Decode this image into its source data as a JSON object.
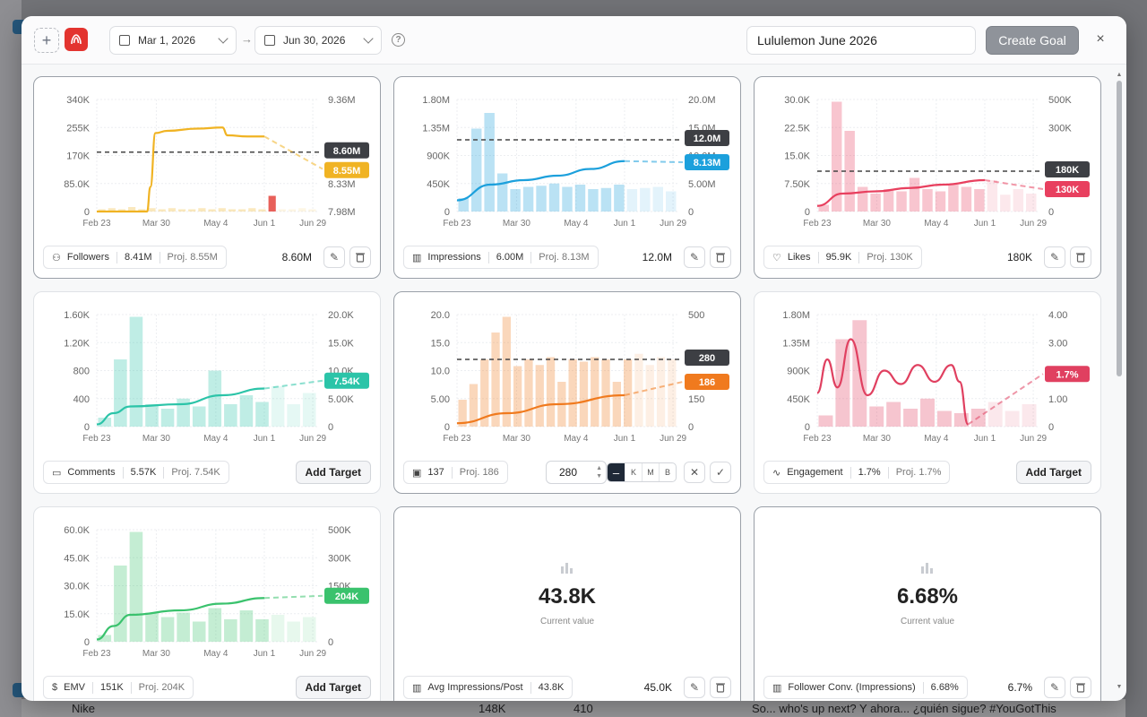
{
  "header": {
    "date_start": "Mar 1, 2026",
    "date_end": "Jun 30, 2026",
    "arrow": "→",
    "goal_name": "Lululemon June 2026",
    "create_label": "Create Goal",
    "close": "×",
    "help": "?",
    "add": "+"
  },
  "background": {
    "bottom_texts": [
      "Nike",
      "148K",
      "410",
      "So... who's up next? Y ahora... ¿quién sigue? #YouGotThis"
    ]
  },
  "x_ticks": [
    "Feb 23",
    "Mar 30",
    "May 4",
    "Jun 1",
    "Jun 29"
  ],
  "cards": [
    {
      "id": "followers",
      "color": "#f0b323",
      "left_ticks": [
        "340K",
        "255K",
        "170K",
        "85.0K",
        "0"
      ],
      "right_ticks": [
        "9.36M",
        "",
        "",
        "8.33M",
        "7.98M"
      ],
      "target_tag": "8.60M",
      "proj_tag": "8.55M",
      "target_y": 0.47,
      "proj_y": 0.62,
      "metric_icon": "followers-icon",
      "metric": "Followers",
      "value": "8.41M",
      "proj": "Proj. 8.55M",
      "current": "8.60M",
      "footer": "edit",
      "line": [
        [
          0,
          1.0
        ],
        [
          0.3,
          1
        ],
        [
          0.32,
          0.78
        ],
        [
          0.35,
          0.3
        ],
        [
          0.42,
          0.28
        ],
        [
          0.6,
          0.26
        ],
        [
          0.75,
          0.25
        ],
        [
          0.78,
          0.32
        ],
        [
          0.9,
          0.33
        ],
        [
          1,
          0.33
        ]
      ],
      "bars": [
        0.02,
        0.03,
        0.02,
        0.04,
        0.02,
        0.03,
        0.02,
        0.03,
        0.02,
        0.02,
        0.03,
        0.02,
        0.03,
        0.02,
        0.02,
        0.03,
        0.02,
        0.14,
        0.02,
        0.02,
        0.03,
        0.02
      ],
      "highlight_bar": 4,
      "highlight_bar2": 17
    },
    {
      "id": "impressions",
      "color": "#1ca0dc",
      "left_ticks": [
        "1.80M",
        "1.35M",
        "900K",
        "450K",
        "0"
      ],
      "right_ticks": [
        "20.0M",
        "15.0M",
        "10.0M",
        "5.00M",
        "0"
      ],
      "target_tag": "12.0M",
      "proj_tag": "8.13M",
      "target_y": 0.36,
      "proj_y": 0.56,
      "metric_icon": "chart-icon",
      "metric": "Impressions",
      "value": "6.00M",
      "proj": "Proj. 8.13M",
      "current": "12.0M",
      "footer": "edit",
      "bars": [
        0.12,
        0.74,
        0.88,
        0.34,
        0.2,
        0.22,
        0.23,
        0.25,
        0.22,
        0.24,
        0.2,
        0.21,
        0.24,
        0.2,
        0.21,
        0.22,
        0.18
      ],
      "line": [
        [
          0,
          0.9
        ],
        [
          0.2,
          0.76
        ],
        [
          0.4,
          0.72
        ],
        [
          0.6,
          0.68
        ],
        [
          0.8,
          0.62
        ],
        [
          1,
          0.55
        ]
      ]
    },
    {
      "id": "likes",
      "color": "#e8405f",
      "left_ticks": [
        "30.0K",
        "22.5K",
        "15.0K",
        "7.50K",
        "0"
      ],
      "right_ticks": [
        "500K",
        "300K",
        "",
        "",
        "0"
      ],
      "target_tag": "180K",
      "proj_tag": "130K",
      "target_y": 0.64,
      "proj_y": 0.8,
      "metric_icon": "heart-icon",
      "metric": "Likes",
      "value": "95.9K",
      "proj": "Proj. 130K",
      "current": "180K",
      "footer": "edit",
      "bars": [
        0.06,
        0.98,
        0.72,
        0.22,
        0.16,
        0.2,
        0.18,
        0.3,
        0.2,
        0.18,
        0.24,
        0.22,
        0.2,
        0.28,
        0.15,
        0.2,
        0.16
      ],
      "line": [
        [
          0,
          0.95
        ],
        [
          0.15,
          0.84
        ],
        [
          0.35,
          0.82
        ],
        [
          0.55,
          0.79
        ],
        [
          0.75,
          0.76
        ],
        [
          1,
          0.72
        ]
      ]
    },
    {
      "id": "comments",
      "color": "#2bc4a8",
      "left_ticks": [
        "1.60K",
        "1.20K",
        "800",
        "400",
        "0"
      ],
      "right_ticks": [
        "20.0K",
        "15.0K",
        "10.0K",
        "5.00K",
        "0"
      ],
      "target_tag": "",
      "proj_tag": "7.54K",
      "target_y": null,
      "proj_y": 0.59,
      "metric_icon": "comment-icon",
      "metric": "Comments",
      "value": "5.57K",
      "proj": "Proj. 7.54K",
      "current": "",
      "footer": "add",
      "add_label": "Add Target",
      "bars": [
        0.08,
        0.6,
        0.98,
        0.2,
        0.16,
        0.25,
        0.18,
        0.5,
        0.2,
        0.28,
        0.22,
        0.36,
        0.2,
        0.3
      ],
      "line": [
        [
          0,
          0.98
        ],
        [
          0.1,
          0.88
        ],
        [
          0.2,
          0.82
        ],
        [
          0.5,
          0.8
        ],
        [
          0.75,
          0.72
        ],
        [
          1,
          0.66
        ]
      ]
    },
    {
      "id": "videos",
      "color": "#f07a1e",
      "left_ticks": [
        "20.0",
        "15.0",
        "10.0",
        "5.00",
        "0"
      ],
      "right_ticks": [
        "500",
        "",
        "",
        "150",
        "0"
      ],
      "target_tag": "280",
      "proj_tag": "186",
      "target_y": 0.4,
      "proj_y": 0.6,
      "metric_icon": "video-icon",
      "metric": "137",
      "value": "",
      "proj": "Proj. 186",
      "current": "",
      "footer": "input",
      "input_value": "280",
      "units": [
        "–",
        "K",
        "M",
        "B"
      ],
      "bars": [
        0.24,
        0.38,
        0.6,
        0.84,
        0.98,
        0.54,
        0.6,
        0.55,
        0.62,
        0.4,
        0.6,
        0.58,
        0.62,
        0.6,
        0.4,
        0.6,
        0.65,
        0.55,
        0.62,
        0.6
      ],
      "line": [
        [
          0,
          0.97
        ],
        [
          0.3,
          0.88
        ],
        [
          0.6,
          0.8
        ],
        [
          1,
          0.72
        ]
      ]
    },
    {
      "id": "engagement",
      "color": "#e04060",
      "left_ticks": [
        "1.80M",
        "1.35M",
        "900K",
        "450K",
        "0"
      ],
      "right_ticks": [
        "4.00",
        "3.00",
        "2.00",
        "1.00",
        "0"
      ],
      "target_tag": "",
      "proj_tag": "1.7%",
      "target_y": null,
      "proj_y": 0.53,
      "metric_icon": "pulse-icon",
      "metric": "Engagement",
      "value": "1.7%",
      "proj": "Proj. 1.7%",
      "current": "",
      "footer": "add",
      "add_label": "Add Target",
      "bars": [
        0.1,
        0.78,
        0.95,
        0.18,
        0.22,
        0.16,
        0.25,
        0.14,
        0.12,
        0.16,
        0.22,
        0.14,
        0.2
      ],
      "line": [
        [
          0,
          0.7
        ],
        [
          0.06,
          0.4
        ],
        [
          0.12,
          0.65
        ],
        [
          0.2,
          0.22
        ],
        [
          0.3,
          0.72
        ],
        [
          0.4,
          0.5
        ],
        [
          0.5,
          0.62
        ],
        [
          0.6,
          0.45
        ],
        [
          0.7,
          0.6
        ],
        [
          0.8,
          0.45
        ],
        [
          0.85,
          0.6
        ],
        [
          0.9,
          0.98
        ]
      ]
    },
    {
      "id": "emv",
      "color": "#3ac26d",
      "left_ticks": [
        "60.0K",
        "45.0K",
        "30.0K",
        "15.0K",
        "0"
      ],
      "right_ticks": [
        "500K",
        "300K",
        "150K",
        "",
        "0"
      ],
      "target_tag": "",
      "proj_tag": "204K",
      "target_y": null,
      "proj_y": 0.59,
      "metric_icon": "dollar-icon",
      "metric": "EMV",
      "value": "151K",
      "proj": "Proj. 204K",
      "current": "",
      "footer": "add",
      "add_label": "Add Target",
      "bars": [
        0.06,
        0.68,
        0.98,
        0.26,
        0.22,
        0.26,
        0.18,
        0.3,
        0.2,
        0.28,
        0.2,
        0.24,
        0.18,
        0.22
      ],
      "line": [
        [
          0,
          0.98
        ],
        [
          0.1,
          0.86
        ],
        [
          0.2,
          0.76
        ],
        [
          0.5,
          0.72
        ],
        [
          0.75,
          0.66
        ],
        [
          1,
          0.61
        ]
      ]
    },
    {
      "id": "avg-impressions",
      "color": "",
      "big_value": "43.8K",
      "sub": "Current value",
      "metric_icon": "chart-icon",
      "metric": "Avg Impressions/Post",
      "value": "43.8K",
      "proj": "",
      "current": "45.0K",
      "footer": "edit"
    },
    {
      "id": "follower-conv",
      "color": "",
      "big_value": "6.68%",
      "sub": "Current value",
      "metric_icon": "chart-icon",
      "metric": "Follower Conv. (Impressions)",
      "value": "6.68%",
      "proj": "",
      "current": "6.7%",
      "footer": "edit"
    }
  ]
}
